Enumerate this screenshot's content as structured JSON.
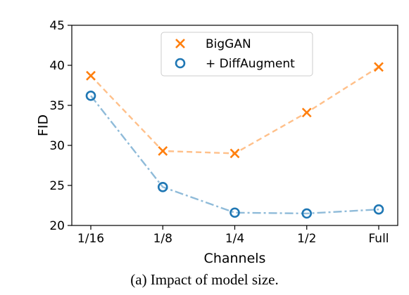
{
  "caption": "(a) Impact of model size.",
  "chart_data": {
    "type": "line",
    "categories": [
      "1/16",
      "1/8",
      "1/4",
      "1/2",
      "Full"
    ],
    "xlabel": "Channels",
    "ylabel": "FID",
    "ylim": [
      20,
      45
    ],
    "yticks": [
      20,
      25,
      30,
      35,
      40,
      45
    ],
    "grid": false,
    "legend_position": "top-center",
    "series": [
      {
        "name": "BigGAN",
        "values": [
          38.7,
          29.3,
          29.0,
          34.1,
          39.8
        ],
        "color": "#ff7f0e",
        "line_color": "#ffc08a",
        "marker": "x",
        "line_style": "dashed"
      },
      {
        "name": "+ DiffAugment",
        "values": [
          36.2,
          24.8,
          21.6,
          21.5,
          22.0
        ],
        "color": "#1f77b4",
        "line_color": "#8fbbd9",
        "marker": "o",
        "line_style": "dashdot"
      }
    ]
  }
}
